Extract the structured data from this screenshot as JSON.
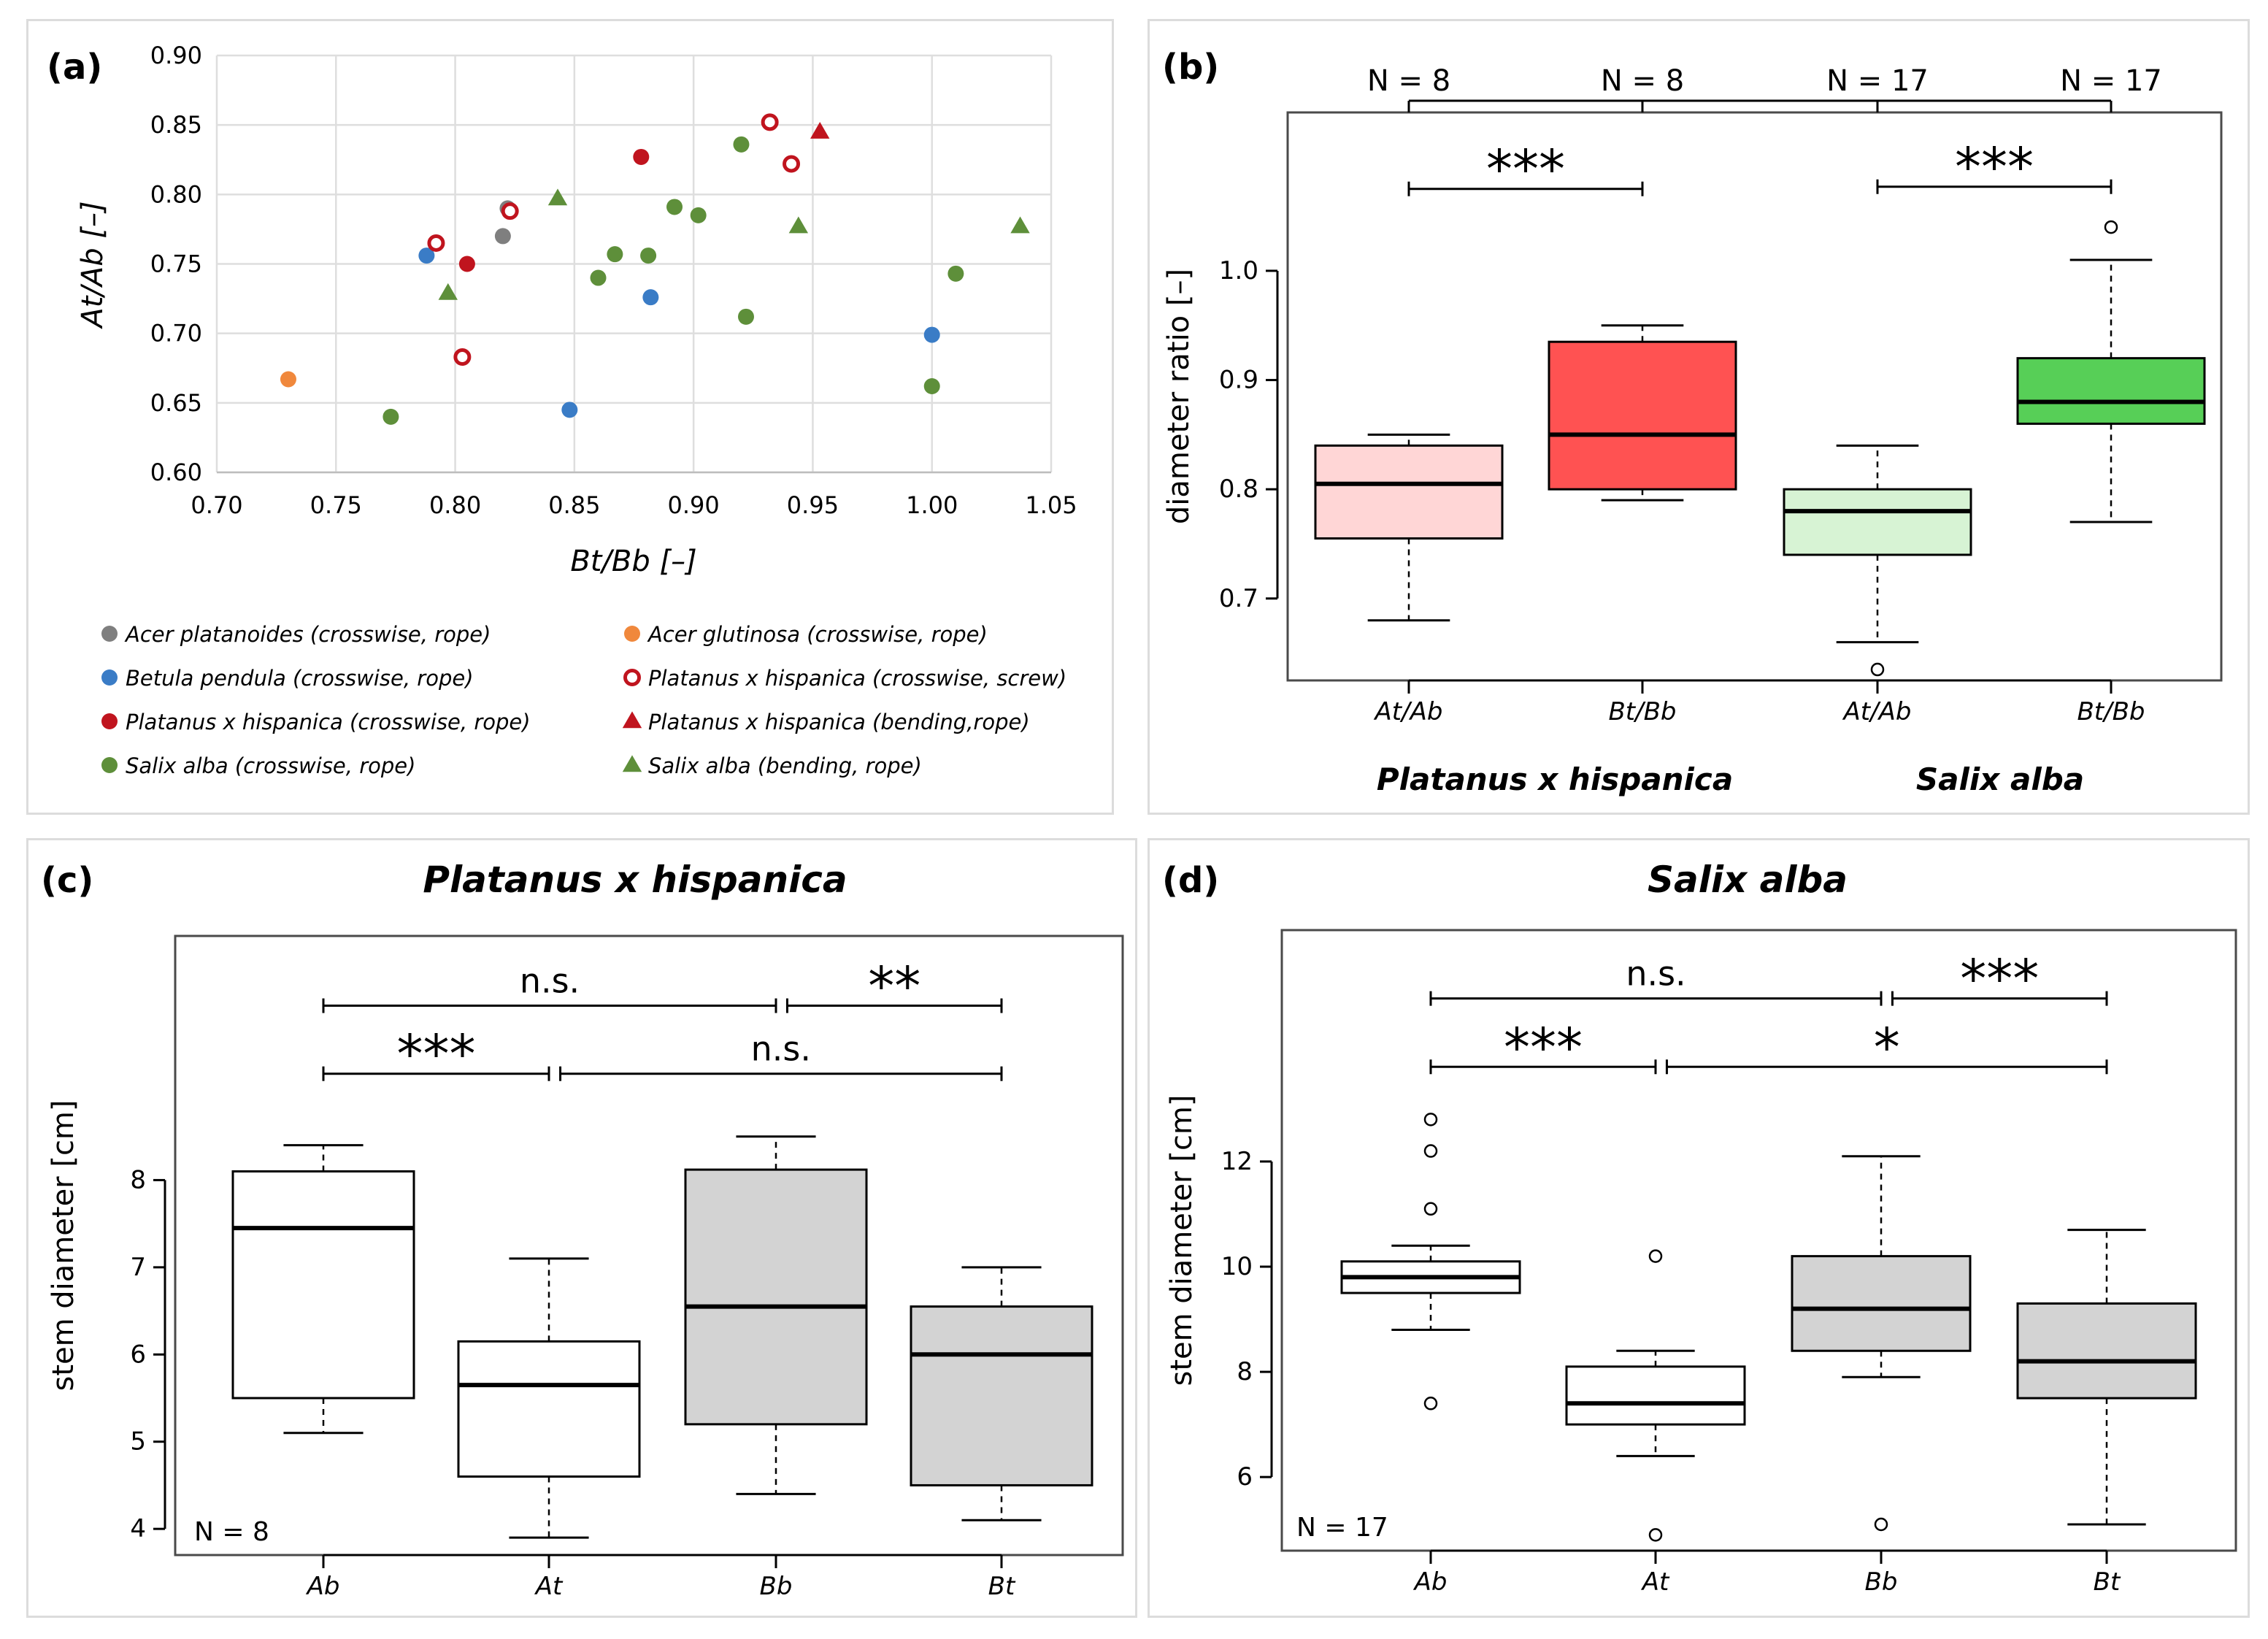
{
  "chart_data": [
    {
      "id": "a",
      "type": "scatter",
      "panel_label": "(a)",
      "xlabel": "Bt/Bb [–]",
      "ylabel": "At/Ab [–]",
      "xlim": [
        0.7,
        1.05
      ],
      "ylim": [
        0.6,
        0.9
      ],
      "x_ticks": [
        "0.70",
        "0.75",
        "0.80",
        "0.85",
        "0.90",
        "0.95",
        "1.00",
        "1.05"
      ],
      "y_ticks": [
        "0.60",
        "0.65",
        "0.70",
        "0.75",
        "0.80",
        "0.85",
        "0.90"
      ],
      "grid": true,
      "legend_position": "bottom",
      "series": [
        {
          "name": "Acer platanoides (crosswise, rope)",
          "color": "#7f7f7f",
          "marker": "circle",
          "points": [
            [
              0.82,
              0.77
            ],
            [
              0.822,
              0.79
            ]
          ]
        },
        {
          "name": "Acer glutinosa (crosswise, rope)",
          "color": "#f0883c",
          "marker": "circle",
          "points": [
            [
              0.73,
              0.667
            ]
          ]
        },
        {
          "name": "Betula pendula (crosswise, rope)",
          "color": "#3a7cc6",
          "marker": "circle",
          "points": [
            [
              0.788,
              0.756
            ],
            [
              0.848,
              0.645
            ],
            [
              0.882,
              0.726
            ],
            [
              1.0,
              0.699
            ]
          ]
        },
        {
          "name": "Platanus x hispanica (crosswise, screw)",
          "color": "#c0141e",
          "marker": "open-circle",
          "points": [
            [
              0.792,
              0.765
            ],
            [
              0.803,
              0.683
            ],
            [
              0.823,
              0.788
            ],
            [
              0.932,
              0.852
            ],
            [
              0.941,
              0.822
            ]
          ]
        },
        {
          "name": "Platanus x hispanica (crosswise, rope)",
          "color": "#c0141e",
          "marker": "circle",
          "points": [
            [
              0.805,
              0.75
            ],
            [
              0.878,
              0.827
            ]
          ]
        },
        {
          "name": "Platanus x hispanica (bending,rope)",
          "color": "#c0141e",
          "marker": "triangle",
          "points": [
            [
              0.953,
              0.845
            ]
          ]
        },
        {
          "name": "Salix alba (crosswise, rope)",
          "color": "#5e8f3a",
          "marker": "circle",
          "points": [
            [
              0.773,
              0.64
            ],
            [
              0.86,
              0.74
            ],
            [
              0.867,
              0.757
            ],
            [
              0.881,
              0.756
            ],
            [
              0.892,
              0.791
            ],
            [
              0.902,
              0.785
            ],
            [
              0.92,
              0.836
            ],
            [
              0.922,
              0.712
            ],
            [
              1.0,
              0.662
            ],
            [
              1.01,
              0.743
            ]
          ]
        },
        {
          "name": "Salix alba (bending, rope)",
          "color": "#5e8f3a",
          "marker": "triangle",
          "points": [
            [
              0.797,
              0.729
            ],
            [
              0.843,
              0.797
            ],
            [
              0.944,
              0.777
            ],
            [
              1.037,
              0.777
            ]
          ]
        }
      ]
    },
    {
      "id": "b",
      "type": "box",
      "panel_label": "(b)",
      "ylabel": "diameter ratio [–]",
      "ylim": [
        0.625,
        1.145
      ],
      "y_ticks": [
        "0.7",
        "0.8",
        "0.9",
        "1.0"
      ],
      "categories": [
        "At/Ab",
        "Bt/Bb",
        "At/Ab",
        "Bt/Bb"
      ],
      "n_labels": [
        "N = 8",
        "N = 8",
        "N = 17",
        "N = 17"
      ],
      "group_labels": [
        "Platanus x hispanica",
        "Salix alba"
      ],
      "boxes": [
        {
          "whisker_low": 0.68,
          "q1": 0.755,
          "median": 0.805,
          "q3": 0.84,
          "whisker_high": 0.85,
          "outliers": [],
          "fill": "#ffd6d6"
        },
        {
          "whisker_low": 0.79,
          "q1": 0.8,
          "median": 0.85,
          "q3": 0.935,
          "whisker_high": 0.95,
          "outliers": [],
          "fill": "#ff5252"
        },
        {
          "whisker_low": 0.66,
          "q1": 0.74,
          "median": 0.78,
          "q3": 0.8,
          "whisker_high": 0.84,
          "outliers": [
            0.635
          ],
          "fill": "#d7f3d4"
        },
        {
          "whisker_low": 0.77,
          "q1": 0.86,
          "median": 0.88,
          "q3": 0.92,
          "whisker_high": 1.01,
          "outliers": [
            1.04
          ],
          "fill": "#57cf57"
        }
      ],
      "significance": [
        {
          "from": 0,
          "to": 1,
          "label": "***",
          "level": 1.075
        },
        {
          "from": 2,
          "to": 3,
          "label": "***",
          "level": 1.077
        }
      ]
    },
    {
      "id": "c",
      "type": "box",
      "panel_label": "(c)",
      "title": "Platanus x hispanica",
      "ylabel": "stem diameter [cm]",
      "ylim": [
        3.7,
        10.8
      ],
      "y_ticks": [
        "4",
        "5",
        "6",
        "7",
        "8"
      ],
      "categories": [
        "Ab",
        "At",
        "Bb",
        "Bt"
      ],
      "n_label": "N = 8",
      "boxes": [
        {
          "whisker_low": 5.1,
          "q1": 5.5,
          "median": 7.45,
          "q3": 8.1,
          "whisker_high": 8.4,
          "outliers": [],
          "fill": "#ffffff"
        },
        {
          "whisker_low": 3.9,
          "q1": 4.6,
          "median": 5.65,
          "q3": 6.15,
          "whisker_high": 7.1,
          "outliers": [],
          "fill": "#ffffff"
        },
        {
          "whisker_low": 4.4,
          "q1": 5.2,
          "median": 6.55,
          "q3": 8.12,
          "whisker_high": 8.5,
          "outliers": [],
          "fill": "#d3d3d3"
        },
        {
          "whisker_low": 4.1,
          "q1": 4.5,
          "median": 6.0,
          "q3": 6.55,
          "whisker_high": 7.0,
          "outliers": [],
          "fill": "#d3d3d3"
        }
      ],
      "significance": [
        {
          "from": 0,
          "to": 2,
          "label": "n.s.",
          "level": 10.0
        },
        {
          "from": 2.05,
          "to": 3,
          "label": "**",
          "level": 10.0
        },
        {
          "from": 0,
          "to": 1,
          "label": "***",
          "level": 9.22
        },
        {
          "from": 1.05,
          "to": 3,
          "label": "n.s.",
          "level": 9.22
        }
      ]
    },
    {
      "id": "d",
      "type": "box",
      "panel_label": "(d)",
      "title": "Salix alba",
      "ylabel": "stem diameter [cm]",
      "ylim": [
        4.6,
        16.4
      ],
      "y_ticks": [
        "6",
        "8",
        "10",
        "12"
      ],
      "categories": [
        "Ab",
        "At",
        "Bb",
        "Bt"
      ],
      "n_label": "N = 17",
      "boxes": [
        {
          "whisker_low": 8.8,
          "q1": 9.5,
          "median": 9.8,
          "q3": 10.1,
          "whisker_high": 10.4,
          "outliers": [
            12.8,
            12.2,
            11.1,
            7.4
          ],
          "fill": "#ffffff"
        },
        {
          "whisker_low": 6.4,
          "q1": 7.0,
          "median": 7.4,
          "q3": 8.1,
          "whisker_high": 8.4,
          "outliers": [
            10.2,
            4.9
          ],
          "fill": "#ffffff"
        },
        {
          "whisker_low": 7.9,
          "q1": 8.4,
          "median": 9.2,
          "q3": 10.2,
          "whisker_high": 12.1,
          "outliers": [
            5.1
          ],
          "fill": "#d3d3d3"
        },
        {
          "whisker_low": 5.1,
          "q1": 7.5,
          "median": 8.2,
          "q3": 9.3,
          "whisker_high": 10.7,
          "outliers": [],
          "fill": "#d3d3d3"
        }
      ],
      "significance": [
        {
          "from": 0,
          "to": 2,
          "label": "n.s.",
          "level": 15.1
        },
        {
          "from": 2.05,
          "to": 3,
          "label": "***",
          "level": 15.1
        },
        {
          "from": 0,
          "to": 1,
          "label": "***",
          "level": 13.8
        },
        {
          "from": 1.05,
          "to": 3,
          "label": "*",
          "level": 13.8
        }
      ]
    }
  ]
}
